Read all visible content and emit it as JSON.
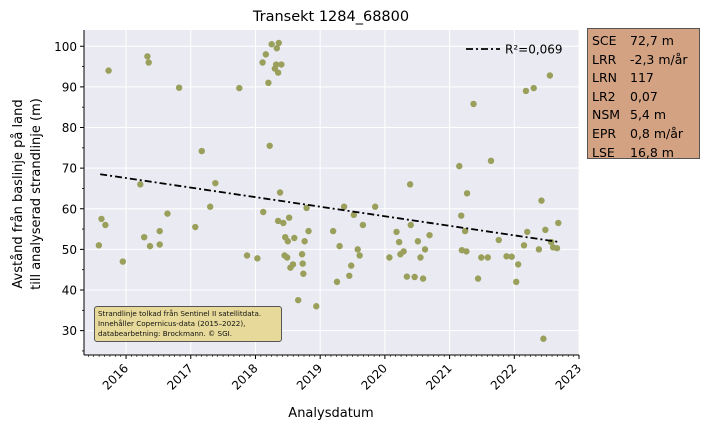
{
  "chart_data": {
    "type": "scatter",
    "title": "Transekt 1284_68800",
    "xlabel": "Analysdatum",
    "ylabel_lines": [
      "Avstånd från baslinje på land",
      "till analyserad strandlinje (m)"
    ],
    "xlim": [
      2015.35,
      2023.0
    ],
    "ylim": [
      24,
      104
    ],
    "x_ticks": [
      "2016",
      "2017",
      "2018",
      "2019",
      "2020",
      "2021",
      "2022",
      "2023"
    ],
    "y_ticks": [
      "30",
      "40",
      "50",
      "60",
      "70",
      "80",
      "90",
      "100"
    ],
    "grid": true,
    "legend": {
      "placement": "top-right",
      "label": "R²=0,069"
    },
    "colors": {
      "points": "#9aa05c",
      "trend": "#000000",
      "plot_bg": "#eaeaf2",
      "grid": "#ffffff"
    },
    "trend_line": {
      "x": [
        2015.6,
        2022.7
      ],
      "y": [
        68.5,
        51.8
      ]
    },
    "points": [
      [
        2015.58,
        51.0
      ],
      [
        2015.62,
        57.5
      ],
      [
        2015.68,
        56.0
      ],
      [
        2015.73,
        94.0
      ],
      [
        2015.95,
        47.0
      ],
      [
        2016.22,
        66.0
      ],
      [
        2016.28,
        53.0
      ],
      [
        2016.33,
        97.5
      ],
      [
        2016.35,
        96.0
      ],
      [
        2016.37,
        50.8
      ],
      [
        2016.52,
        51.2
      ],
      [
        2016.52,
        54.5
      ],
      [
        2016.64,
        58.8
      ],
      [
        2016.82,
        89.8
      ],
      [
        2017.07,
        55.5
      ],
      [
        2017.17,
        74.2
      ],
      [
        2017.3,
        60.5
      ],
      [
        2017.38,
        66.3
      ],
      [
        2017.75,
        89.7
      ],
      [
        2017.87,
        48.5
      ],
      [
        2018.03,
        47.8
      ],
      [
        2018.11,
        96.0
      ],
      [
        2018.12,
        59.2
      ],
      [
        2018.16,
        98.0
      ],
      [
        2018.2,
        91.0
      ],
      [
        2018.22,
        75.5
      ],
      [
        2018.25,
        100.5
      ],
      [
        2018.3,
        94.5
      ],
      [
        2018.32,
        95.5
      ],
      [
        2018.33,
        99.5
      ],
      [
        2018.35,
        57.0
      ],
      [
        2018.35,
        93.5
      ],
      [
        2018.36,
        100.8
      ],
      [
        2018.38,
        64.0
      ],
      [
        2018.4,
        95.5
      ],
      [
        2018.43,
        56.5
      ],
      [
        2018.45,
        48.5
      ],
      [
        2018.46,
        53.0
      ],
      [
        2018.49,
        48.0
      ],
      [
        2018.5,
        52.0
      ],
      [
        2018.52,
        57.8
      ],
      [
        2018.54,
        45.5
      ],
      [
        2018.58,
        46.3
      ],
      [
        2018.6,
        52.8
      ],
      [
        2018.66,
        37.5
      ],
      [
        2018.72,
        48.8
      ],
      [
        2018.73,
        46.5
      ],
      [
        2018.74,
        44.0
      ],
      [
        2018.76,
        52.0
      ],
      [
        2018.79,
        60.2
      ],
      [
        2018.82,
        54.5
      ],
      [
        2018.94,
        36.0
      ],
      [
        2019.2,
        54.5
      ],
      [
        2019.26,
        42.0
      ],
      [
        2019.3,
        50.8
      ],
      [
        2019.37,
        60.5
      ],
      [
        2019.45,
        43.5
      ],
      [
        2019.48,
        46.0
      ],
      [
        2019.52,
        58.5
      ],
      [
        2019.58,
        50.0
      ],
      [
        2019.61,
        48.5
      ],
      [
        2019.66,
        56.0
      ],
      [
        2019.85,
        60.5
      ],
      [
        2020.07,
        48.0
      ],
      [
        2020.18,
        54.3
      ],
      [
        2020.22,
        51.8
      ],
      [
        2020.24,
        48.8
      ],
      [
        2020.29,
        49.5
      ],
      [
        2020.34,
        43.3
      ],
      [
        2020.39,
        66.0
      ],
      [
        2020.4,
        56.0
      ],
      [
        2020.46,
        43.2
      ],
      [
        2020.51,
        52.0
      ],
      [
        2020.55,
        48.0
      ],
      [
        2020.59,
        42.8
      ],
      [
        2020.62,
        50.0
      ],
      [
        2020.69,
        53.5
      ],
      [
        2021.15,
        70.5
      ],
      [
        2021.18,
        58.3
      ],
      [
        2021.19,
        49.8
      ],
      [
        2021.24,
        54.5
      ],
      [
        2021.26,
        49.5
      ],
      [
        2021.27,
        63.8
      ],
      [
        2021.37,
        85.8
      ],
      [
        2021.44,
        42.8
      ],
      [
        2021.49,
        48.0
      ],
      [
        2021.59,
        48.0
      ],
      [
        2021.64,
        71.8
      ],
      [
        2021.76,
        52.3
      ],
      [
        2021.88,
        48.3
      ],
      [
        2021.96,
        48.2
      ],
      [
        2022.03,
        42.0
      ],
      [
        2022.06,
        46.3
      ],
      [
        2022.15,
        51.0
      ],
      [
        2022.18,
        89.0
      ],
      [
        2022.2,
        54.3
      ],
      [
        2022.3,
        89.7
      ],
      [
        2022.38,
        50.0
      ],
      [
        2022.42,
        62.0
      ],
      [
        2022.45,
        28.0
      ],
      [
        2022.48,
        54.8
      ],
      [
        2022.55,
        92.8
      ],
      [
        2022.57,
        51.8
      ],
      [
        2022.6,
        50.5
      ],
      [
        2022.66,
        50.3
      ],
      [
        2022.68,
        56.5
      ]
    ]
  },
  "stats": [
    {
      "key": "SCE",
      "value": "72,7 m"
    },
    {
      "key": "LRR",
      "value": "-2,3 m/år"
    },
    {
      "key": "LRN",
      "value": "117"
    },
    {
      "key": "LR2",
      "value": "0,07"
    },
    {
      "key": "NSM",
      "value": "5,4 m"
    },
    {
      "key": "EPR",
      "value": "0,8 m/år"
    },
    {
      "key": "LSE",
      "value": "16,8 m"
    }
  ],
  "credit": {
    "line1": "Strandlinje tolkad från Sentinel II satellitdata.",
    "line2": "Innehåller Copernicus-data (2015–2022),",
    "line3": "databearbetning: Brockmann. © SGI."
  }
}
